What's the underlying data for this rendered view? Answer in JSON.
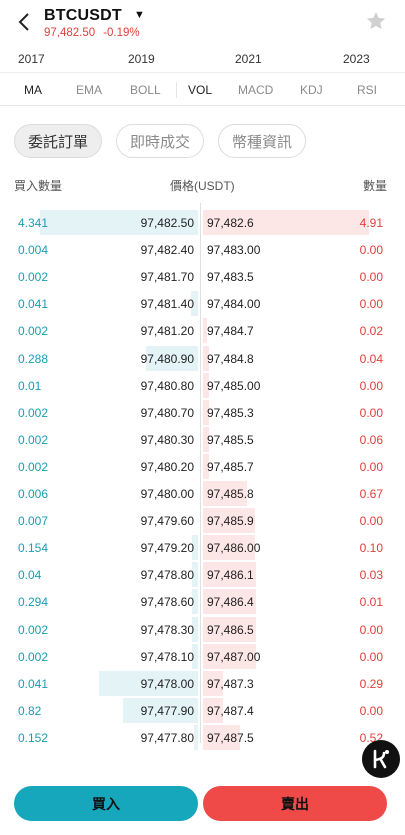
{
  "header": {
    "symbol": "BTCUSDT",
    "last_price": "97,482.50",
    "change_pct": "-0.19%"
  },
  "timeline": [
    "2017",
    "2019",
    "2021",
    "2023"
  ],
  "indicators": [
    {
      "label": "MA",
      "active": true
    },
    {
      "label": "EMA",
      "active": false
    },
    {
      "label": "BOLL",
      "active": false
    },
    {
      "label": "VOL",
      "active": true
    },
    {
      "label": "MACD",
      "active": false
    },
    {
      "label": "KDJ",
      "active": false
    },
    {
      "label": "RSI",
      "active": false
    }
  ],
  "tabs": [
    {
      "label": "委託訂單",
      "active": true
    },
    {
      "label": "即時成交",
      "active": false
    },
    {
      "label": "幣種資訊",
      "active": false
    }
  ],
  "columns": {
    "bid_qty": "買入數量",
    "price": "價格(USDT)",
    "ask_qty": "數量"
  },
  "order_book": [
    {
      "bid_qty": "4.341",
      "bid_price": "97,482.50",
      "ask_price": "97,482.6",
      "ask_qty": "4.91",
      "bid_depth": 0.86,
      "ask_depth": 0.9
    },
    {
      "bid_qty": "0.004",
      "bid_price": "97,482.40",
      "ask_price": "97,483.00",
      "ask_qty": "0.00",
      "bid_depth": 0.0,
      "ask_depth": 0.0
    },
    {
      "bid_qty": "0.002",
      "bid_price": "97,481.70",
      "ask_price": "97,483.5",
      "ask_qty": "0.00",
      "bid_depth": 0.0,
      "ask_depth": 0.0
    },
    {
      "bid_qty": "0.041",
      "bid_price": "97,481.40",
      "ask_price": "97,484.00",
      "ask_qty": "0.00",
      "bid_depth": 0.04,
      "ask_depth": 0.0
    },
    {
      "bid_qty": "0.002",
      "bid_price": "97,481.20",
      "ask_price": "97,484.7",
      "ask_qty": "0.02",
      "bid_depth": 0.0,
      "ask_depth": 0.02
    },
    {
      "bid_qty": "0.288",
      "bid_price": "97,480.90",
      "ask_price": "97,484.8",
      "ask_qty": "0.04",
      "bid_depth": 0.28,
      "ask_depth": 0.03
    },
    {
      "bid_qty": "0.01",
      "bid_price": "97,480.80",
      "ask_price": "97,485.00",
      "ask_qty": "0.00",
      "bid_depth": 0.0,
      "ask_depth": 0.03
    },
    {
      "bid_qty": "0.002",
      "bid_price": "97,480.70",
      "ask_price": "97,485.3",
      "ask_qty": "0.00",
      "bid_depth": 0.0,
      "ask_depth": 0.03
    },
    {
      "bid_qty": "0.002",
      "bid_price": "97,480.30",
      "ask_price": "97,485.5",
      "ask_qty": "0.06",
      "bid_depth": 0.0,
      "ask_depth": 0.03
    },
    {
      "bid_qty": "0.002",
      "bid_price": "97,480.20",
      "ask_price": "97,485.7",
      "ask_qty": "0.00",
      "bid_depth": 0.0,
      "ask_depth": 0.03
    },
    {
      "bid_qty": "0.006",
      "bid_price": "97,480.00",
      "ask_price": "97,485.8",
      "ask_qty": "0.67",
      "bid_depth": 0.0,
      "ask_depth": 0.24
    },
    {
      "bid_qty": "0.007",
      "bid_price": "97,479.60",
      "ask_price": "97,485.9",
      "ask_qty": "0.00",
      "bid_depth": 0.0,
      "ask_depth": 0.28
    },
    {
      "bid_qty": "0.154",
      "bid_price": "97,479.20",
      "ask_price": "97,486.00",
      "ask_qty": "0.10",
      "bid_depth": 0.03,
      "ask_depth": 0.28
    },
    {
      "bid_qty": "0.04",
      "bid_price": "97,478.80",
      "ask_price": "97,486.1",
      "ask_qty": "0.03",
      "bid_depth": 0.03,
      "ask_depth": 0.29
    },
    {
      "bid_qty": "0.294",
      "bid_price": "97,478.60",
      "ask_price": "97,486.4",
      "ask_qty": "0.01",
      "bid_depth": 0.03,
      "ask_depth": 0.29
    },
    {
      "bid_qty": "0.002",
      "bid_price": "97,478.30",
      "ask_price": "97,486.5",
      "ask_qty": "0.00",
      "bid_depth": 0.03,
      "ask_depth": 0.29
    },
    {
      "bid_qty": "0.002",
      "bid_price": "97,478.10",
      "ask_price": "97,487.00",
      "ask_qty": "0.00",
      "bid_depth": 0.03,
      "ask_depth": 0.29
    },
    {
      "bid_qty": "0.041",
      "bid_price": "97,478.00",
      "ask_price": "97,487.3",
      "ask_qty": "0.29",
      "bid_depth": 0.54,
      "ask_depth": 0.11
    },
    {
      "bid_qty": "0.82",
      "bid_price": "97,477.90",
      "ask_price": "97,487.4",
      "ask_qty": "0.00",
      "bid_depth": 0.41,
      "ask_depth": 0.11
    },
    {
      "bid_qty": "0.152",
      "bid_price": "97,477.80",
      "ask_price": "97,487.5",
      "ask_qty": "0.52",
      "bid_depth": 0.02,
      "ask_depth": 0.2
    }
  ],
  "actions": {
    "buy": "買入",
    "sell": "賣出"
  },
  "colors": {
    "buy": "#17a7bd",
    "sell": "#ef4a48",
    "bid_text": "#1a9db3",
    "ask_text": "#e0403b"
  }
}
